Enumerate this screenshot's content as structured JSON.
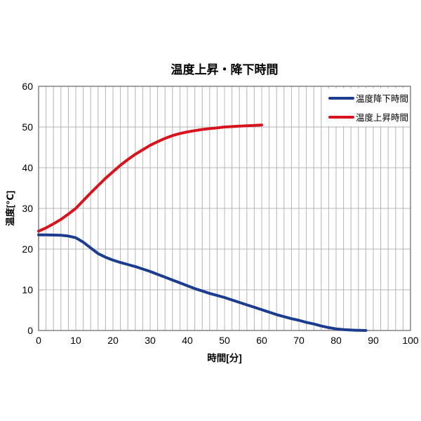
{
  "title": "温度上昇・降下時間",
  "colors": {
    "background": "#ffffff",
    "grid": "#b4b4b4",
    "plot_border": "#6f6f6f",
    "text": "#000000",
    "fall_line": "#1c3d8f",
    "rise_line": "#d7141d"
  },
  "chart_data": {
    "type": "line",
    "title": "温度上昇・降下時間",
    "xlabel": "時間[分]",
    "ylabel": "温度[℃]",
    "xlim": [
      0,
      100
    ],
    "ylim": [
      0,
      60
    ],
    "x_ticks": [
      0,
      10,
      20,
      30,
      40,
      50,
      60,
      70,
      80,
      90,
      100
    ],
    "y_ticks": [
      0,
      10,
      20,
      30,
      40,
      50,
      60
    ],
    "grid": {
      "vertical_step": 2,
      "horizontal_step": 10
    },
    "legend": {
      "position": "top-right-inside",
      "border": "none"
    },
    "series": [
      {
        "name": "温度降下時間",
        "color": "#1c3d8f",
        "points": [
          [
            0,
            23.5
          ],
          [
            2,
            23.5
          ],
          [
            4,
            23.45
          ],
          [
            6,
            23.4
          ],
          [
            8,
            23.2
          ],
          [
            10,
            22.8
          ],
          [
            12,
            21.7
          ],
          [
            14,
            20.3
          ],
          [
            16,
            18.9
          ],
          [
            18,
            18.0
          ],
          [
            20,
            17.3
          ],
          [
            22,
            16.7
          ],
          [
            24,
            16.2
          ],
          [
            26,
            15.7
          ],
          [
            28,
            15.1
          ],
          [
            30,
            14.5
          ],
          [
            32,
            13.8
          ],
          [
            34,
            13.1
          ],
          [
            36,
            12.4
          ],
          [
            38,
            11.7
          ],
          [
            40,
            11.0
          ],
          [
            42,
            10.3
          ],
          [
            44,
            9.7
          ],
          [
            46,
            9.1
          ],
          [
            48,
            8.6
          ],
          [
            50,
            8.1
          ],
          [
            52,
            7.5
          ],
          [
            54,
            6.9
          ],
          [
            56,
            6.3
          ],
          [
            58,
            5.7
          ],
          [
            60,
            5.1
          ],
          [
            62,
            4.5
          ],
          [
            64,
            3.9
          ],
          [
            66,
            3.4
          ],
          [
            68,
            2.9
          ],
          [
            70,
            2.5
          ],
          [
            72,
            2.0
          ],
          [
            74,
            1.6
          ],
          [
            76,
            1.1
          ],
          [
            78,
            0.7
          ],
          [
            80,
            0.4
          ],
          [
            82,
            0.2
          ],
          [
            84,
            0.1
          ],
          [
            86,
            0.03
          ],
          [
            88,
            0
          ]
        ]
      },
      {
        "name": "温度上昇時間",
        "color": "#d7141d",
        "points": [
          [
            0,
            24.4
          ],
          [
            2,
            25.2
          ],
          [
            4,
            26.2
          ],
          [
            6,
            27.3
          ],
          [
            8,
            28.6
          ],
          [
            10,
            30.0
          ],
          [
            12,
            31.9
          ],
          [
            14,
            33.8
          ],
          [
            16,
            35.6
          ],
          [
            18,
            37.4
          ],
          [
            20,
            39.0
          ],
          [
            22,
            40.6
          ],
          [
            24,
            42.0
          ],
          [
            26,
            43.3
          ],
          [
            28,
            44.4
          ],
          [
            30,
            45.5
          ],
          [
            32,
            46.4
          ],
          [
            34,
            47.2
          ],
          [
            36,
            47.9
          ],
          [
            38,
            48.4
          ],
          [
            40,
            48.8
          ],
          [
            42,
            49.1
          ],
          [
            44,
            49.4
          ],
          [
            46,
            49.6
          ],
          [
            48,
            49.8
          ],
          [
            50,
            50.0
          ],
          [
            52,
            50.1
          ],
          [
            54,
            50.2
          ],
          [
            56,
            50.3
          ],
          [
            58,
            50.4
          ],
          [
            60,
            50.5
          ]
        ]
      }
    ]
  }
}
